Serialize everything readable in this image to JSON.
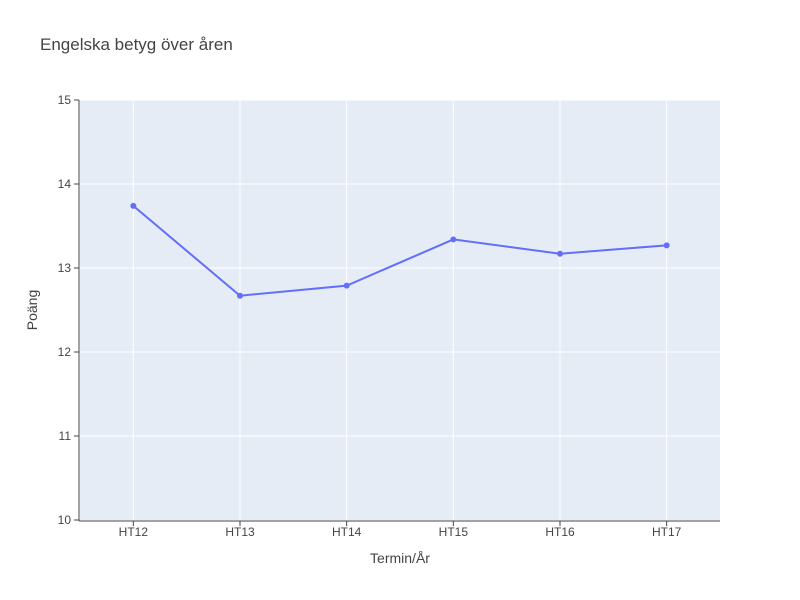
{
  "chart_data": {
    "type": "line",
    "title": "Engelska betyg över åren",
    "xlabel": "Termin/År",
    "ylabel": "Poäng",
    "categories": [
      "HT12",
      "HT13",
      "HT14",
      "HT15",
      "HT16",
      "HT17"
    ],
    "ylim": [
      10,
      15
    ],
    "yticks": [
      10,
      11,
      12,
      13,
      14,
      15
    ],
    "grid": true,
    "series": [
      {
        "color": "#636efa",
        "values": [
          13.74,
          12.67,
          12.79,
          13.34,
          13.17,
          13.27
        ]
      }
    ]
  }
}
